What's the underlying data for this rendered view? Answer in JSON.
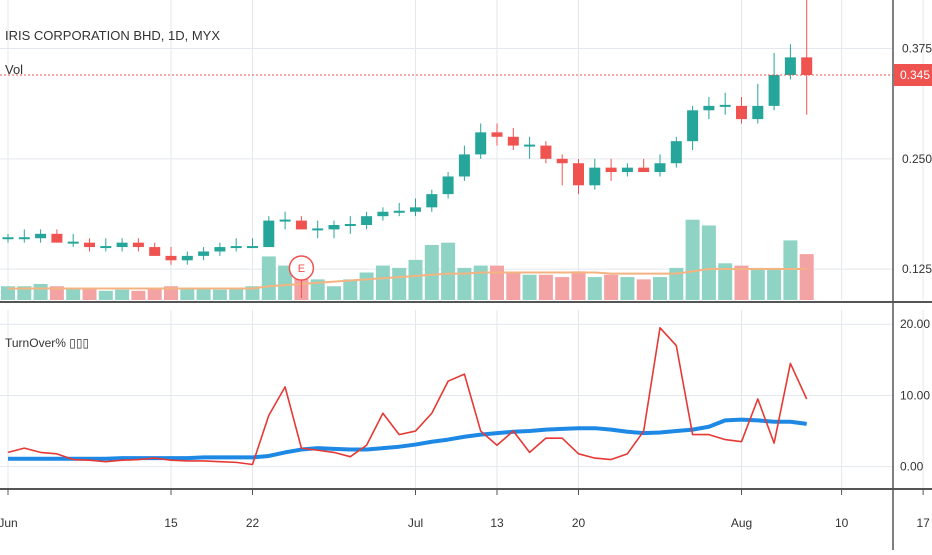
{
  "chart_data": [
    {
      "type": "candlestick",
      "title": "IRIS CORPORATION BHD, 1D, MYX",
      "overlay_label": "Vol",
      "price_axis_ticks": [
        0.125,
        0.25,
        0.375
      ],
      "price_axis_tick_labels": [
        "0.125",
        "0.250",
        "0.375"
      ],
      "last_price": 0.345,
      "last_price_label": "0.345",
      "ylim": [
        0.09,
        0.43
      ],
      "x": [
        "Jun 1",
        "Jun 2",
        "Jun 3",
        "Jun 4",
        "Jun 5",
        "Jun 8",
        "Jun 9",
        "Jun 10",
        "Jun 11",
        "Jun 12",
        "Jun 15",
        "Jun 16",
        "Jun 17",
        "Jun 18",
        "Jun 19",
        "Jun 22",
        "Jun 23",
        "Jun 24",
        "Jun 25",
        "Jun 26",
        "Jun 29",
        "Jun 30",
        "Jul 1",
        "Jul 2",
        "Jul 3",
        "Jul 6",
        "Jul 7",
        "Jul 8",
        "Jul 9",
        "Jul 10",
        "Jul 13",
        "Jul 14",
        "Jul 15",
        "Jul 16",
        "Jul 17",
        "Jul 20",
        "Jul 21",
        "Jul 22",
        "Jul 23",
        "Jul 24",
        "Jul 27",
        "Jul 28",
        "Jul 29",
        "Jul 30",
        "Jul 31",
        "Aug 3",
        "Aug 4",
        "Aug 5",
        "Aug 6",
        "Aug 7"
      ],
      "open": [
        0.16,
        0.16,
        0.16,
        0.165,
        0.155,
        0.155,
        0.15,
        0.15,
        0.155,
        0.15,
        0.14,
        0.135,
        0.14,
        0.145,
        0.15,
        0.15,
        0.15,
        0.18,
        0.18,
        0.17,
        0.17,
        0.175,
        0.175,
        0.185,
        0.19,
        0.19,
        0.195,
        0.21,
        0.23,
        0.255,
        0.28,
        0.275,
        0.265,
        0.265,
        0.25,
        0.245,
        0.22,
        0.24,
        0.235,
        0.24,
        0.235,
        0.245,
        0.27,
        0.305,
        0.31,
        0.31,
        0.295,
        0.31,
        0.345,
        0.365
      ],
      "high": [
        0.165,
        0.17,
        0.17,
        0.17,
        0.165,
        0.16,
        0.16,
        0.16,
        0.16,
        0.155,
        0.15,
        0.145,
        0.15,
        0.155,
        0.16,
        0.16,
        0.185,
        0.19,
        0.185,
        0.18,
        0.18,
        0.185,
        0.19,
        0.195,
        0.2,
        0.205,
        0.215,
        0.235,
        0.265,
        0.29,
        0.29,
        0.285,
        0.275,
        0.27,
        0.255,
        0.25,
        0.25,
        0.25,
        0.245,
        0.25,
        0.255,
        0.275,
        0.31,
        0.32,
        0.325,
        0.32,
        0.335,
        0.37,
        0.38,
        0.43
      ],
      "low": [
        0.155,
        0.155,
        0.155,
        0.155,
        0.15,
        0.145,
        0.145,
        0.145,
        0.145,
        0.14,
        0.13,
        0.13,
        0.135,
        0.14,
        0.145,
        0.15,
        0.15,
        0.17,
        0.17,
        0.16,
        0.16,
        0.165,
        0.17,
        0.18,
        0.185,
        0.185,
        0.19,
        0.205,
        0.225,
        0.25,
        0.265,
        0.26,
        0.25,
        0.245,
        0.22,
        0.21,
        0.215,
        0.225,
        0.23,
        0.235,
        0.23,
        0.24,
        0.26,
        0.295,
        0.3,
        0.29,
        0.29,
        0.305,
        0.34,
        0.3
      ],
      "close": [
        0.16,
        0.16,
        0.165,
        0.155,
        0.155,
        0.15,
        0.15,
        0.155,
        0.15,
        0.14,
        0.135,
        0.14,
        0.145,
        0.15,
        0.15,
        0.15,
        0.18,
        0.18,
        0.17,
        0.17,
        0.175,
        0.175,
        0.185,
        0.19,
        0.19,
        0.195,
        0.21,
        0.23,
        0.255,
        0.28,
        0.275,
        0.265,
        0.265,
        0.25,
        0.245,
        0.22,
        0.24,
        0.235,
        0.24,
        0.235,
        0.245,
        0.27,
        0.305,
        0.31,
        0.31,
        0.295,
        0.31,
        0.345,
        0.365,
        0.345
      ],
      "volume": [
        12,
        12,
        14,
        12,
        10,
        10,
        8,
        9,
        8,
        10,
        12,
        10,
        10,
        9,
        10,
        12,
        38,
        30,
        22,
        18,
        12,
        18,
        24,
        30,
        28,
        35,
        48,
        50,
        28,
        30,
        30,
        24,
        22,
        22,
        20,
        25,
        20,
        22,
        20,
        18,
        20,
        28,
        70,
        65,
        32,
        30,
        28,
        28,
        52,
        40
      ],
      "volume_ma": [
        10,
        10,
        10,
        10,
        10,
        10,
        10,
        10,
        10,
        10,
        10,
        10,
        10,
        10,
        10,
        10,
        12,
        13,
        14,
        15,
        16,
        17,
        18,
        19,
        20,
        21,
        22,
        23,
        23,
        24,
        24,
        24,
        24,
        24,
        24,
        24,
        24,
        23,
        23,
        23,
        23,
        23,
        25,
        27,
        27,
        27,
        27,
        27,
        27,
        27
      ],
      "annotation": {
        "label": "E",
        "x": "Jun 25"
      }
    },
    {
      "type": "line",
      "title": "TurnOver% ▯▯▯",
      "ylim": [
        -3.0,
        22.0
      ],
      "y_ticks": [
        0,
        10,
        20
      ],
      "y_tick_labels": [
        "0.00",
        "10.00",
        "20.00"
      ],
      "x_tick_labels": [
        "Jun",
        "15",
        "22",
        "Jul",
        "13",
        "20",
        "Aug",
        "10",
        "17"
      ],
      "x_tick_dates": [
        "Jun 1",
        "Jun 15",
        "Jun 22",
        "Jul 6",
        "Jul 13",
        "Jul 20",
        "Aug 3",
        "Aug 10",
        "Aug 17"
      ],
      "x": [
        "Jun 1",
        "Jun 2",
        "Jun 3",
        "Jun 4",
        "Jun 5",
        "Jun 8",
        "Jun 9",
        "Jun 10",
        "Jun 11",
        "Jun 12",
        "Jun 15",
        "Jun 16",
        "Jun 17",
        "Jun 18",
        "Jun 19",
        "Jun 22",
        "Jun 23",
        "Jun 24",
        "Jun 25",
        "Jun 26",
        "Jun 29",
        "Jun 30",
        "Jul 1",
        "Jul 2",
        "Jul 3",
        "Jul 6",
        "Jul 7",
        "Jul 8",
        "Jul 9",
        "Jul 10",
        "Jul 13",
        "Jul 14",
        "Jul 15",
        "Jul 16",
        "Jul 17",
        "Jul 20",
        "Jul 21",
        "Jul 22",
        "Jul 23",
        "Jul 24",
        "Jul 27",
        "Jul 28",
        "Jul 29",
        "Jul 30",
        "Jul 31",
        "Aug 3",
        "Aug 4",
        "Aug 5",
        "Aug 6",
        "Aug 7"
      ],
      "series": [
        {
          "values": [
            2.0,
            2.6,
            2.0,
            1.8,
            1.0,
            0.9,
            0.7,
            0.9,
            1.0,
            1.2,
            0.9,
            0.8,
            0.8,
            0.7,
            0.6,
            0.3,
            7.2,
            11.2,
            2.6,
            2.3,
            2.0,
            1.4,
            3.0,
            7.5,
            4.5,
            5.0,
            7.5,
            12.0,
            13.0,
            5.0,
            3.0,
            5.0,
            2.0,
            4.0,
            4.0,
            1.8,
            1.2,
            1.0,
            1.8,
            5.0,
            19.5,
            17.0,
            4.5,
            4.5,
            3.8,
            3.5,
            9.5,
            3.3,
            14.5,
            9.5
          ]
        },
        {
          "values": [
            1.1,
            1.1,
            1.1,
            1.1,
            1.1,
            1.1,
            1.1,
            1.2,
            1.2,
            1.2,
            1.2,
            1.2,
            1.3,
            1.3,
            1.3,
            1.3,
            1.5,
            2.0,
            2.4,
            2.6,
            2.5,
            2.4,
            2.4,
            2.6,
            2.8,
            3.1,
            3.5,
            3.8,
            4.2,
            4.5,
            4.7,
            4.9,
            5.0,
            5.2,
            5.3,
            5.4,
            5.4,
            5.2,
            4.9,
            4.7,
            4.8,
            5.0,
            5.2,
            5.6,
            6.5,
            6.6,
            6.5,
            6.3,
            6.3,
            6.0
          ]
        }
      ]
    }
  ]
}
